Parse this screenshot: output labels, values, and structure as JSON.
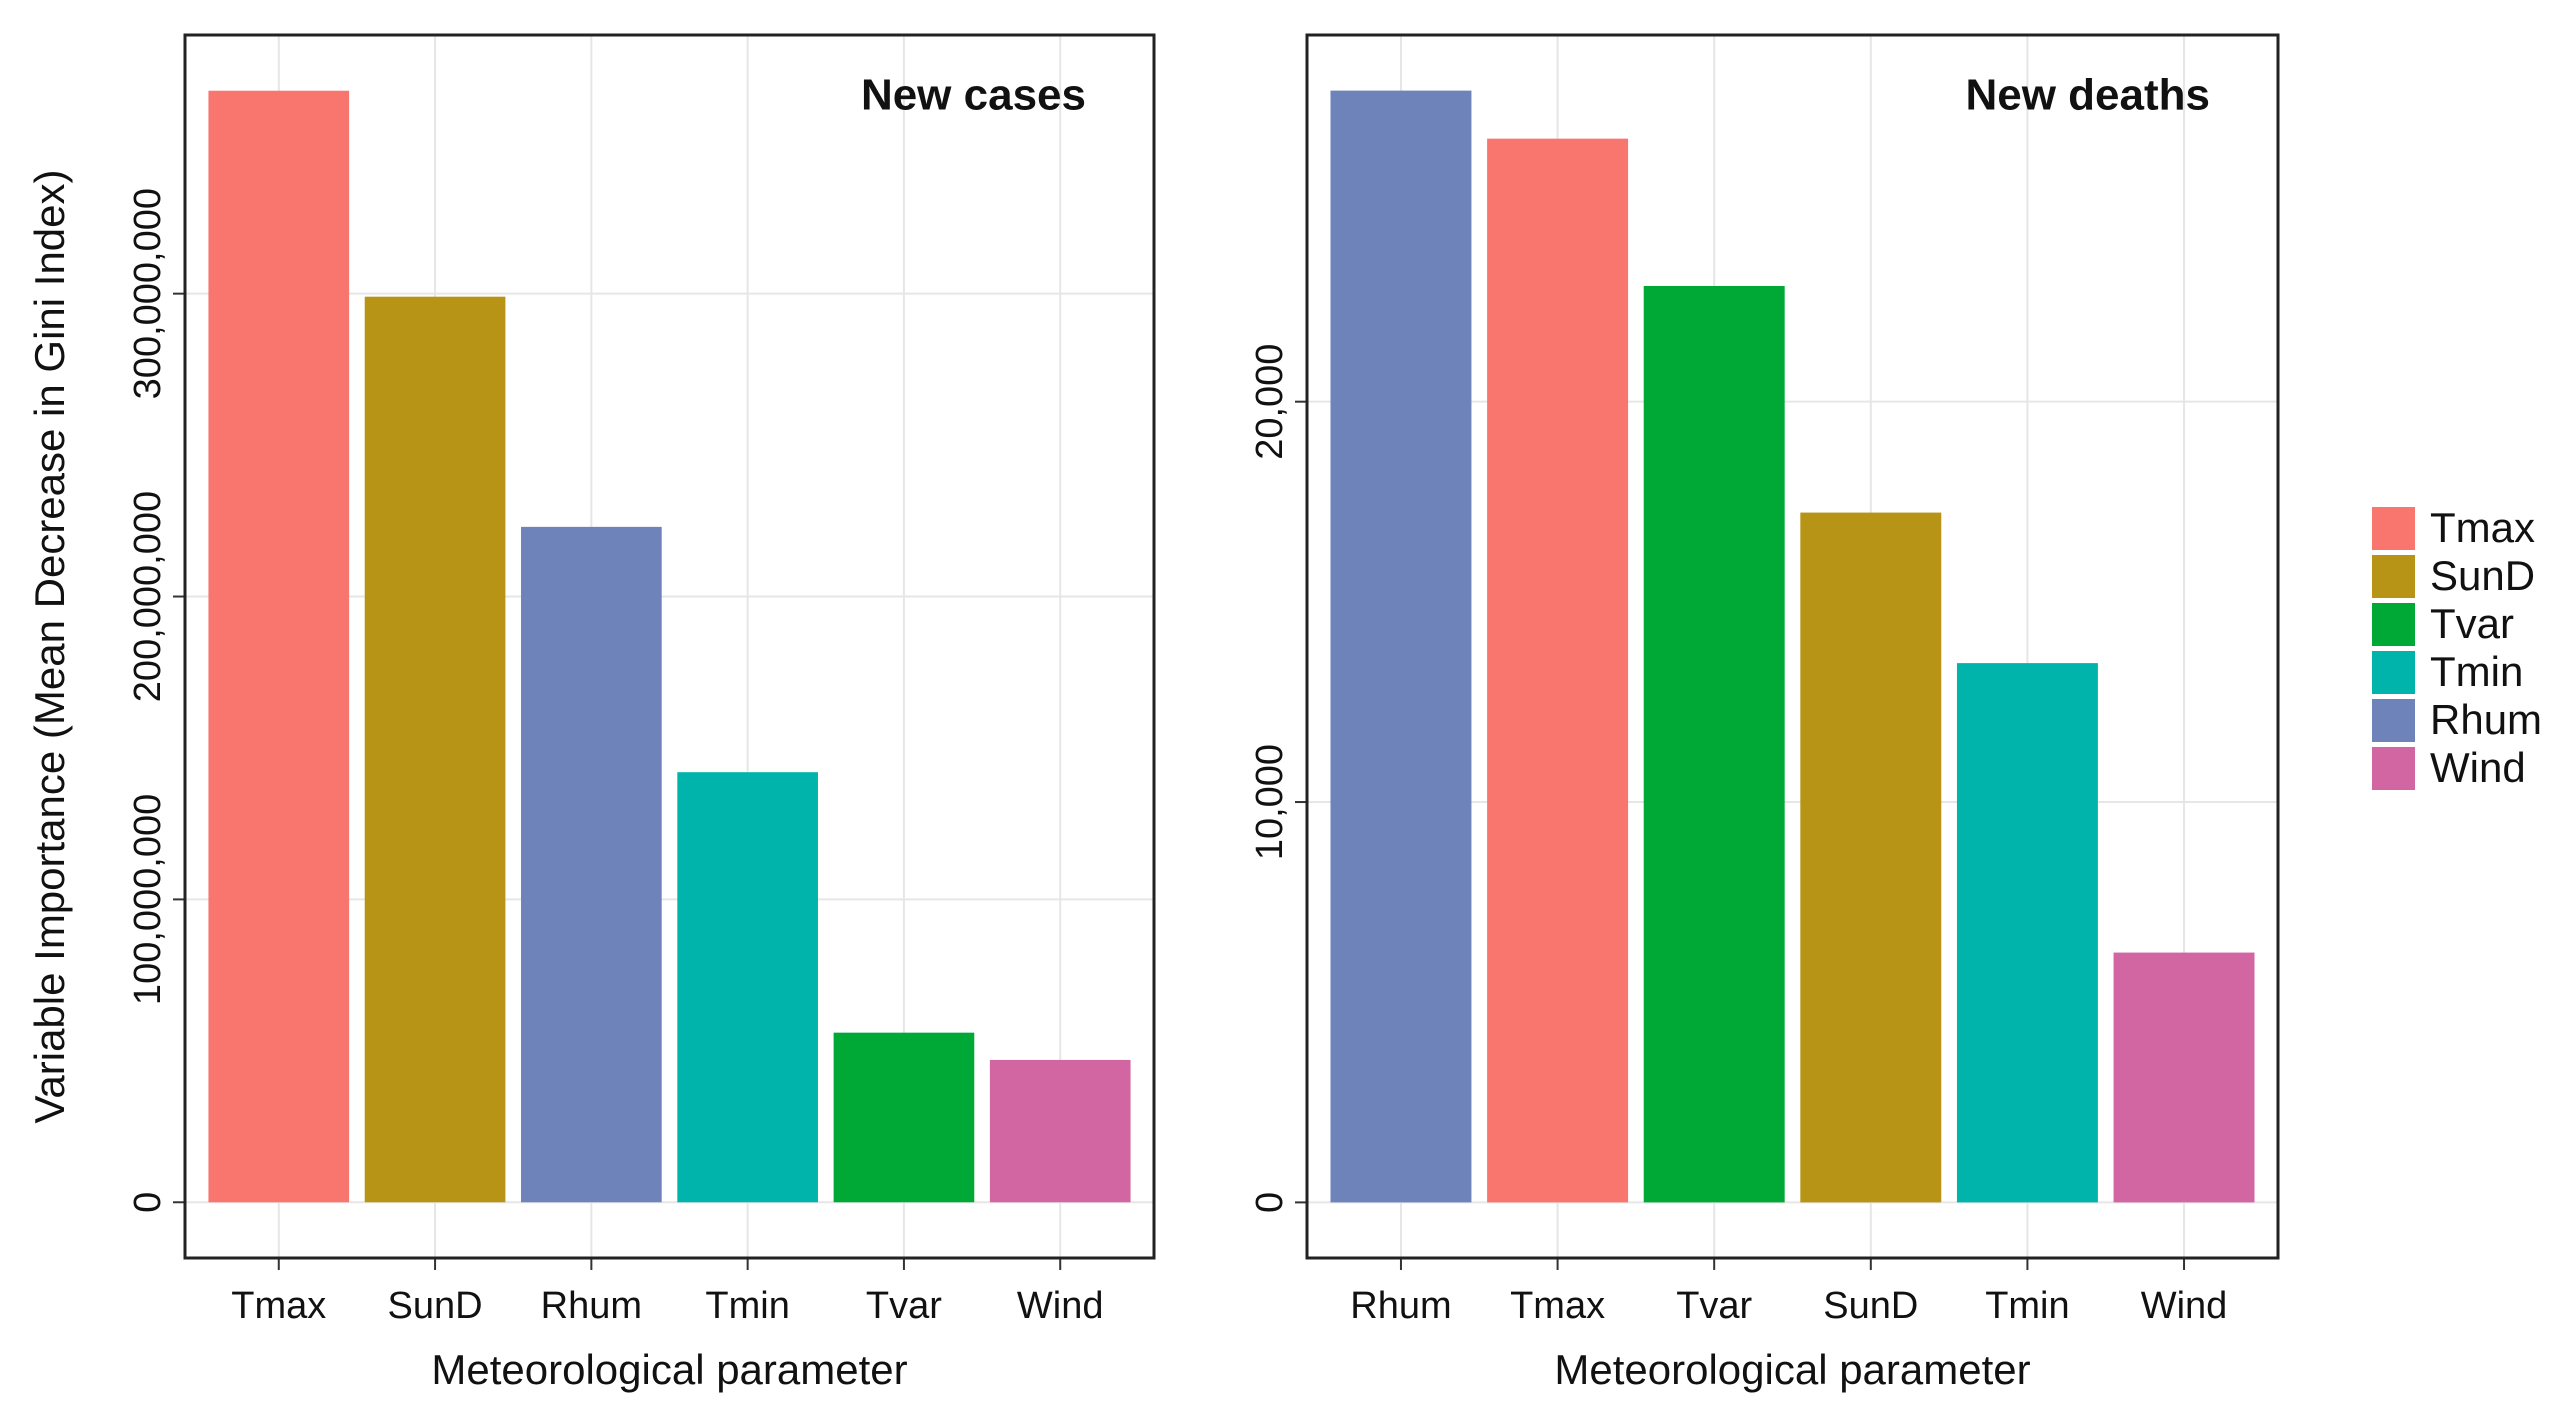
{
  "chart_data": [
    {
      "type": "bar",
      "title": "New cases",
      "ylabel": "Variable Importance (Mean Decrease in Gini Index)",
      "xlabel": "Meteorological parameter",
      "categories": [
        "Tmax",
        "SunD",
        "Rhum",
        "Tmin",
        "Tvar",
        "Wind"
      ],
      "values": [
        367000000,
        299000000,
        223000000,
        142000000,
        56000000,
        47000000
      ],
      "colors": [
        "#f8766d",
        "#b79415",
        "#6d83b9",
        "#00b4ac",
        "#00a935",
        "#d166a2"
      ],
      "ylim": [
        -18400000,
        385400000
      ],
      "yticks": [
        0,
        {
          "value": 100000000,
          "label": "100,000,000"
        },
        {
          "value": 200000000,
          "label": "200,000,000"
        },
        {
          "value": 300000000,
          "label": "300,000,000"
        }
      ],
      "grid": true
    },
    {
      "type": "bar",
      "title": "New deaths",
      "xlabel": "Meteorological parameter",
      "categories": [
        "Rhum",
        "Tmax",
        "Tvar",
        "SunD",
        "Tmin",
        "Wind"
      ],
      "values": [
        27770,
        26570,
        22890,
        17230,
        13470,
        6240
      ],
      "colors": [
        "#6d83b9",
        "#f8766d",
        "#00a935",
        "#b79415",
        "#00b4ac",
        "#d166a2"
      ],
      "ylim": [
        -1389,
        29159
      ],
      "yticks": [
        0,
        {
          "value": 10000,
          "label": "10,000"
        },
        {
          "value": 20000,
          "label": "20,000"
        }
      ],
      "grid": true
    }
  ],
  "legend": [
    {
      "name": "Tmax",
      "color": "#f8766d"
    },
    {
      "name": "SunD",
      "color": "#b79415"
    },
    {
      "name": "Tvar",
      "color": "#00a935"
    },
    {
      "name": "Tmin",
      "color": "#00b4ac"
    },
    {
      "name": "Rhum",
      "color": "#6d83b9"
    },
    {
      "name": "Wind",
      "color": "#d166a2"
    }
  ]
}
